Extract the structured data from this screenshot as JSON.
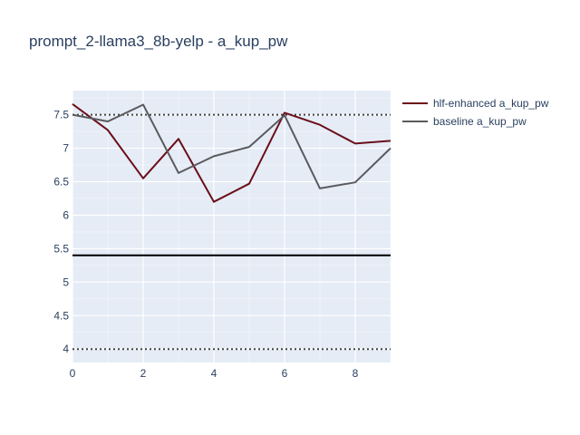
{
  "chart_data": {
    "type": "line",
    "title": "prompt_2-llama3_8b-yelp - a_kup_pw",
    "xlabel": "",
    "ylabel": "",
    "xlim": [
      0,
      9
    ],
    "ylim": [
      3.8,
      7.86
    ],
    "x_ticks": [
      0,
      2,
      4,
      6,
      8
    ],
    "y_ticks": [
      4,
      4.5,
      5,
      5.5,
      6,
      6.5,
      7,
      7.5
    ],
    "x": [
      0,
      1,
      2,
      3,
      4,
      5,
      6,
      7,
      8,
      9
    ],
    "series": [
      {
        "name": "hlf-enhanced a_kup_pw",
        "color": "#6b0f1a",
        "values": [
          7.66,
          7.27,
          6.55,
          7.14,
          6.2,
          6.47,
          7.53,
          7.35,
          7.07,
          7.11
        ]
      },
      {
        "name": "baseline a_kup_pw",
        "color": "#5a5a5e",
        "values": [
          7.5,
          7.4,
          7.65,
          6.63,
          6.88,
          7.02,
          7.49,
          6.4,
          6.49,
          7.0
        ]
      }
    ],
    "reference_lines": [
      {
        "y": 7.5,
        "style": "dotted",
        "color": "#444444"
      },
      {
        "y": 5.4,
        "style": "solid",
        "color": "#000000"
      },
      {
        "y": 4.0,
        "style": "dotted",
        "color": "#444444"
      }
    ],
    "grid": true,
    "legend_position": "top-right",
    "plot_background": "#e5ecf6"
  }
}
